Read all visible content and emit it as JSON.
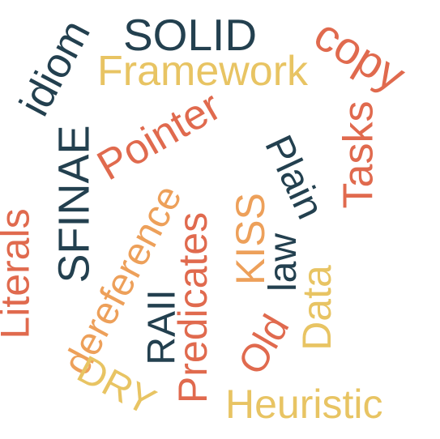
{
  "palette": {
    "navy": "#23404f",
    "coral": "#e06a4e",
    "orange": "#eda05a",
    "gold": "#e8c463"
  },
  "words": [
    {
      "text": "SOLID",
      "color": "#23404f"
    },
    {
      "text": "copy",
      "color": "#e06a4e"
    },
    {
      "text": "idiom",
      "color": "#23404f"
    },
    {
      "text": "Framework",
      "color": "#e8c463"
    },
    {
      "text": "Tasks",
      "color": "#e06a4e"
    },
    {
      "text": "SFINAE",
      "color": "#23404f"
    },
    {
      "text": "Pointer",
      "color": "#e06a4e"
    },
    {
      "text": "Plain",
      "color": "#23404f"
    },
    {
      "text": "dereference",
      "color": "#eda05a"
    },
    {
      "text": "Literals",
      "color": "#e06a4e"
    },
    {
      "text": "Predicates",
      "color": "#e06a4e"
    },
    {
      "text": "KISS",
      "color": "#eda05a"
    },
    {
      "text": "law",
      "color": "#23404f"
    },
    {
      "text": "RAII",
      "color": "#23404f"
    },
    {
      "text": "Data",
      "color": "#e8c463"
    },
    {
      "text": "Old",
      "color": "#e06a4e"
    },
    {
      "text": "DRY",
      "color": "#e8c463"
    },
    {
      "text": "Heuristic",
      "color": "#e8c463"
    }
  ]
}
